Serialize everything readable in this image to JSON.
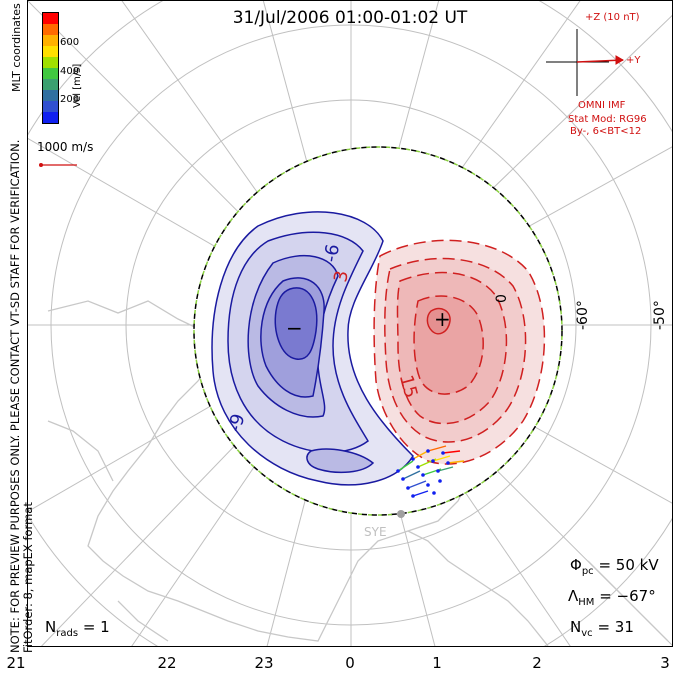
{
  "title": "31/Jul/2006 01:00-01:02 UT",
  "side_note": {
    "line1": "NOTE: FOR PREVIEW PURPOSES ONLY. PLEASE CONTACT VT-SD STAFF FOR VERIFICATION.",
    "line2": "FitOrder: 8, mapEX format"
  },
  "coordinates_label": "MLT coordinates",
  "velocity_legend": {
    "unit_label": "Vel [m/s]",
    "ticks": [
      "600",
      "400",
      "200"
    ],
    "colors": [
      "#ff0000",
      "#ff6a00",
      "#ffb000",
      "#ffe000",
      "#a0e000",
      "#40c840",
      "#3aa070",
      "#3070a0",
      "#3050d0",
      "#1020f0"
    ]
  },
  "vector_scale_label": "1000 m/s",
  "imf": {
    "z_label": "+Z (10 nT)",
    "y_label": "+Y",
    "source_label": "OMNI IMF",
    "model_line1": "Stat Mod: RG96",
    "model_line2": "By-, 6<BT<12",
    "color": "#d01010"
  },
  "latitude_labels": [
    "-60°",
    "-50°"
  ],
  "contour_labels": {
    "neg_a": "-6",
    "neg_b": "-9",
    "pos_a": "3",
    "pos_b": "15",
    "pos_c": "0",
    "min_mark": "−",
    "max_mark": "+"
  },
  "station_label": "SYE",
  "stats": {
    "phi_label": "Φ",
    "phi_sub": "pc",
    "phi_value": "= 50 kV",
    "lambda_label": "Λ",
    "lambda_sub": "HM",
    "lambda_value": "= −67°",
    "nvc_label": "N",
    "nvc_sub": "vc",
    "nvc_value": "= 31",
    "nrads_label": "N",
    "nrads_sub": "rads",
    "nrads_value": "= 1"
  },
  "mlt_hours": [
    "21",
    "22",
    "23",
    "0",
    "1",
    "2",
    "3"
  ],
  "colors": {
    "negative": "#1a1aa0",
    "positive": "#d02020",
    "grid": "#c0c0c0",
    "coast": "#c8c8c8",
    "boundary_green": "#8ad040"
  }
}
